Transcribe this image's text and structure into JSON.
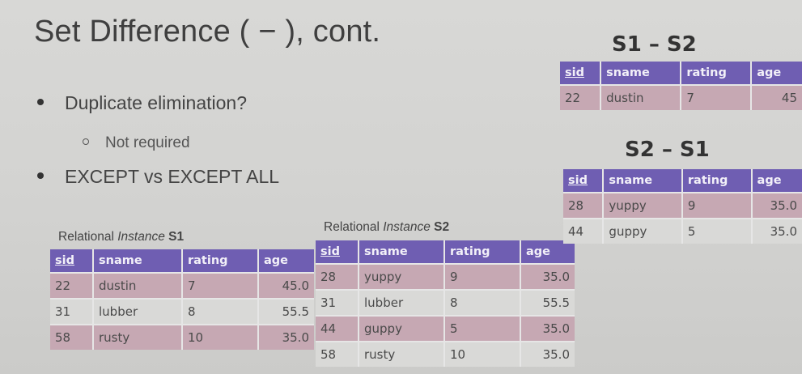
{
  "slide": {
    "title": "Set Difference ( − ), cont.",
    "bullets": {
      "b1": "Duplicate elimination?",
      "b1_sub": "Not required",
      "b2": "EXCEPT vs EXCEPT ALL"
    }
  },
  "s1": {
    "caption_prefix": "Relational ",
    "caption_italic": "Instance",
    "caption_bold": "S1",
    "headers": [
      "sid",
      "sname",
      "rating",
      "age"
    ],
    "rows": [
      [
        "22",
        "dustin",
        "7",
        "45.0"
      ],
      [
        "31",
        "lubber",
        "8",
        "55.5"
      ],
      [
        "58",
        "rusty",
        "10",
        "35.0"
      ]
    ]
  },
  "s2": {
    "caption_prefix": "Relational ",
    "caption_italic": "Instance",
    "caption_bold": "S2",
    "headers": [
      "sid",
      "sname",
      "rating",
      "age"
    ],
    "rows": [
      [
        "28",
        "yuppy",
        "9",
        "35.0"
      ],
      [
        "31",
        "lubber",
        "8",
        "55.5"
      ],
      [
        "44",
        "guppy",
        "5",
        "35.0"
      ],
      [
        "58",
        "rusty",
        "10",
        "35.0"
      ]
    ]
  },
  "s1_minus_s2": {
    "title": "S1 – S2",
    "headers": [
      "sid",
      "sname",
      "rating",
      "age"
    ],
    "rows": [
      [
        "22",
        "dustin",
        "7",
        "45"
      ]
    ]
  },
  "s2_minus_s1": {
    "title": "S2 – S1",
    "headers": [
      "sid",
      "sname",
      "rating",
      "age"
    ],
    "rows": [
      [
        "28",
        "yuppy",
        "9",
        "35.0"
      ],
      [
        "44",
        "guppy",
        "5",
        "35.0"
      ]
    ]
  }
}
